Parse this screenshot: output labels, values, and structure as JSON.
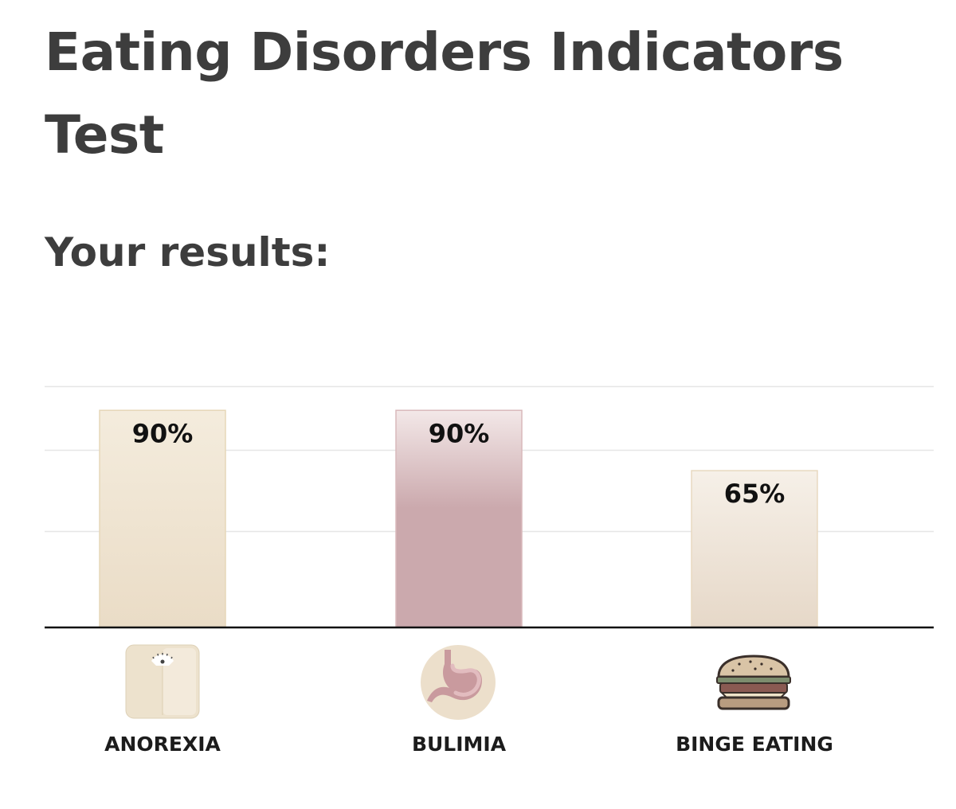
{
  "header": {
    "title": "Eating Disorders Indicators Test",
    "subtitle": "Your results:"
  },
  "chart_data": {
    "type": "bar",
    "categories": [
      "ANOREXIA",
      "BULIMIA",
      "BINGE EATING"
    ],
    "values": [
      90,
      90,
      65
    ],
    "value_labels": [
      "90%",
      "90%",
      "65%"
    ],
    "ylim": [
      0,
      100
    ],
    "grid": true,
    "icons": [
      "scale-icon",
      "stomach-icon",
      "burger-icon"
    ],
    "colors": {
      "anorexia_top": "#f4ecdd",
      "anorexia_bottom": "#eadcc6",
      "anorexia_border": "#e6d7b8",
      "bulimia_top": "#f3e8e8",
      "bulimia_bottom": "#cba9ad",
      "bulimia_border": "#d9b9bb",
      "binge_top": "#f6f0e8",
      "binge_bottom": "#e6d8c8",
      "binge_border": "#e8d9c0",
      "gridline": "#e6e6e6",
      "baseline": "#111111"
    }
  }
}
